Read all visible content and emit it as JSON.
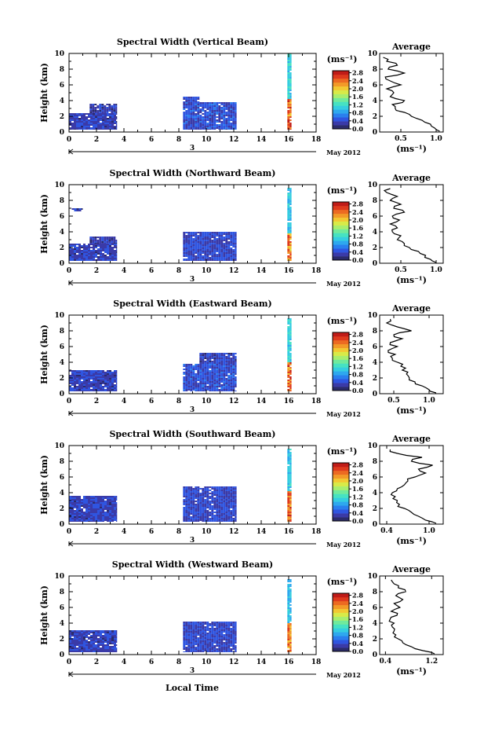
{
  "figure": {
    "xlabel": "Local Time",
    "date_label": "May 2012",
    "date_marker": "3",
    "avg_title": "Average",
    "cb_unit": "(ms⁻¹)",
    "avg_xlabel": "(ms⁻¹)",
    "ylabel": "Height (km)"
  },
  "colors": {
    "colormap": [
      "#2b2b6b",
      "#3a3aa8",
      "#2f55e0",
      "#2a7fee",
      "#2ea8ee",
      "#35cde0",
      "#46e2c2",
      "#70ea9c",
      "#a8ee6e",
      "#d8ea48",
      "#f2c832",
      "#f29a28",
      "#ec6a22",
      "#de3a1e",
      "#c01c18"
    ],
    "background": "#ffffff"
  },
  "chart_data": [
    {
      "type": "heatmap",
      "title": "Spectral Width (Vertical Beam)",
      "xlim": [
        0,
        18
      ],
      "ylim": [
        0,
        10
      ],
      "xticks": [
        "0",
        "2",
        "4",
        "6",
        "8",
        "10",
        "12",
        "14",
        "16",
        "18"
      ],
      "yticks": [
        "0",
        "2",
        "4",
        "6",
        "8",
        "10"
      ],
      "colorbar": {
        "ticks": [
          "0.0",
          "0.4",
          "0.8",
          "1.2",
          "1.6",
          "2.0",
          "2.4",
          "2.8"
        ],
        "range": [
          0,
          2.9
        ]
      },
      "blocks": [
        {
          "t": [
            0,
            3.5
          ],
          "h": [
            0.3,
            2.4
          ],
          "v": 0.35
        },
        {
          "t": [
            1.5,
            3.5
          ],
          "h": [
            2.4,
            3.6
          ],
          "v": 0.3
        },
        {
          "t": [
            8.3,
            12.2
          ],
          "h": [
            0.3,
            3.8
          ],
          "v": 0.45
        },
        {
          "t": [
            8.3,
            9.5
          ],
          "h": [
            3.8,
            4.5
          ],
          "v": 0.4
        },
        {
          "t": [
            15.9,
            16.2
          ],
          "h": [
            0.3,
            4.2
          ],
          "v": 2.4
        },
        {
          "t": [
            15.9,
            16.2
          ],
          "h": [
            4.2,
            10.0
          ],
          "v": 1.1
        }
      ],
      "average": {
        "xlim": [
          0.2,
          1.1
        ],
        "xticks": [
          "0.5",
          "1.0"
        ],
        "xtick_values": [
          0.5,
          1.0
        ],
        "x": [
          1.05,
          0.98,
          0.92,
          0.8,
          0.65,
          0.55,
          0.42,
          0.38,
          0.55,
          0.35,
          0.4,
          0.3,
          0.5,
          0.35,
          0.28,
          0.55,
          0.32,
          0.45,
          0.3,
          0.25
        ],
        "y": [
          0.1,
          0.5,
          1.0,
          1.5,
          2.0,
          2.5,
          3.0,
          3.5,
          4.0,
          4.5,
          5.0,
          5.5,
          6.0,
          6.5,
          7.0,
          7.5,
          8.0,
          8.5,
          9.0,
          9.5
        ]
      }
    },
    {
      "type": "heatmap",
      "title": "Spectral Width (Northward Beam)",
      "xlim": [
        0,
        18
      ],
      "ylim": [
        0,
        10
      ],
      "xticks": [
        "0",
        "2",
        "4",
        "6",
        "8",
        "10",
        "12",
        "14",
        "16",
        "18"
      ],
      "yticks": [
        "0",
        "2",
        "4",
        "6",
        "8",
        "10"
      ],
      "colorbar": {
        "ticks": [
          "0.0",
          "0.4",
          "0.8",
          "1.2",
          "1.6",
          "2.0",
          "2.4",
          "2.8"
        ],
        "range": [
          0,
          2.9
        ]
      },
      "blocks": [
        {
          "t": [
            0,
            3.5
          ],
          "h": [
            0.3,
            2.5
          ],
          "v": 0.35
        },
        {
          "t": [
            1.5,
            3.5
          ],
          "h": [
            2.5,
            3.4
          ],
          "v": 0.3
        },
        {
          "t": [
            8.3,
            12.2
          ],
          "h": [
            0.3,
            4.0
          ],
          "v": 0.4
        },
        {
          "t": [
            0.2,
            1.0
          ],
          "h": [
            6.6,
            7.0
          ],
          "v": 0.3
        },
        {
          "t": [
            15.9,
            16.2
          ],
          "h": [
            0.3,
            3.8
          ],
          "v": 2.3
        },
        {
          "t": [
            15.9,
            16.2
          ],
          "h": [
            3.8,
            9.6
          ],
          "v": 1.0
        }
      ],
      "average": {
        "xlim": [
          0.2,
          1.1
        ],
        "xticks": [
          "0.5",
          "1.0"
        ],
        "xtick_values": [
          0.5,
          1.0
        ],
        "x": [
          1.0,
          0.92,
          0.85,
          0.75,
          0.62,
          0.55,
          0.45,
          0.5,
          0.38,
          0.45,
          0.35,
          0.48,
          0.38,
          0.55,
          0.4,
          0.5,
          0.35,
          0.45,
          0.3,
          0.35
        ],
        "y": [
          0.1,
          0.5,
          1.0,
          1.5,
          2.0,
          2.5,
          3.0,
          3.5,
          4.0,
          4.5,
          5.0,
          5.5,
          6.0,
          6.5,
          7.0,
          7.5,
          8.0,
          8.5,
          9.0,
          9.5
        ]
      }
    },
    {
      "type": "heatmap",
      "title": "Spectral Width (Eastward Beam)",
      "xlim": [
        0,
        18
      ],
      "ylim": [
        0,
        10
      ],
      "xticks": [
        "0",
        "2",
        "4",
        "6",
        "8",
        "10",
        "12",
        "14",
        "16",
        "18"
      ],
      "yticks": [
        "0",
        "2",
        "4",
        "6",
        "8",
        "10"
      ],
      "colorbar": {
        "ticks": [
          "0.0",
          "0.4",
          "0.8",
          "1.2",
          "1.6",
          "2.0",
          "2.4",
          "2.8"
        ],
        "range": [
          0,
          2.9
        ]
      },
      "blocks": [
        {
          "t": [
            0,
            3.5
          ],
          "h": [
            0.3,
            3.0
          ],
          "v": 0.35
        },
        {
          "t": [
            8.3,
            12.2
          ],
          "h": [
            0.3,
            3.8
          ],
          "v": 0.45
        },
        {
          "t": [
            9.5,
            12.2
          ],
          "h": [
            3.8,
            5.2
          ],
          "v": 0.35
        },
        {
          "t": [
            15.9,
            16.2
          ],
          "h": [
            0.3,
            4.0
          ],
          "v": 2.4
        },
        {
          "t": [
            15.9,
            16.2
          ],
          "h": [
            4.0,
            9.6
          ],
          "v": 1.1
        }
      ],
      "average": {
        "xlim": [
          0.3,
          1.2
        ],
        "xticks": [
          "0.5",
          "1.0"
        ],
        "xtick_values": [
          0.5,
          1.0
        ],
        "x": [
          1.1,
          1.0,
          0.9,
          0.8,
          0.72,
          0.68,
          0.62,
          0.6,
          0.55,
          0.48,
          0.52,
          0.42,
          0.55,
          0.45,
          0.62,
          0.5,
          0.75,
          0.55,
          0.4,
          0.45
        ],
        "y": [
          0.1,
          0.5,
          1.0,
          1.5,
          2.0,
          2.5,
          3.0,
          3.5,
          4.0,
          4.5,
          5.0,
          5.5,
          6.0,
          6.5,
          7.0,
          7.5,
          8.0,
          8.5,
          9.0,
          9.5
        ]
      }
    },
    {
      "type": "heatmap",
      "title": "Spectral Width (Southward Beam)",
      "xlim": [
        0,
        18
      ],
      "ylim": [
        0,
        10
      ],
      "xticks": [
        "0",
        "2",
        "4",
        "6",
        "8",
        "10",
        "12",
        "14",
        "16",
        "18"
      ],
      "yticks": [
        "0",
        "2",
        "4",
        "6",
        "8",
        "10"
      ],
      "colorbar": {
        "ticks": [
          "0.0",
          "0.4",
          "0.8",
          "1.2",
          "1.6",
          "2.0",
          "2.4",
          "2.8"
        ],
        "range": [
          0,
          2.9
        ]
      },
      "blocks": [
        {
          "t": [
            0,
            3.5
          ],
          "h": [
            0.3,
            3.6
          ],
          "v": 0.35
        },
        {
          "t": [
            8.3,
            12.2
          ],
          "h": [
            0.3,
            4.8
          ],
          "v": 0.4
        },
        {
          "t": [
            15.9,
            16.2
          ],
          "h": [
            0.3,
            4.2
          ],
          "v": 2.4
        },
        {
          "t": [
            15.9,
            16.2
          ],
          "h": [
            4.2,
            9.6
          ],
          "v": 1.0
        }
      ],
      "average": {
        "xlim": [
          0.3,
          1.2
        ],
        "xticks": [
          "0.4",
          "1.0"
        ],
        "xtick_values": [
          0.4,
          1.0
        ],
        "x": [
          1.1,
          0.95,
          0.85,
          0.75,
          0.65,
          0.58,
          0.55,
          0.52,
          0.48,
          0.55,
          0.65,
          0.7,
          0.8,
          0.95,
          0.85,
          1.05,
          0.75,
          0.9,
          0.55,
          0.45
        ],
        "y": [
          0.1,
          0.5,
          1.0,
          1.5,
          2.0,
          2.5,
          3.0,
          3.5,
          4.0,
          4.5,
          5.0,
          5.5,
          6.0,
          6.5,
          7.0,
          7.5,
          8.0,
          8.5,
          9.0,
          9.5
        ]
      }
    },
    {
      "type": "heatmap",
      "title": "Spectral Width (Westward Beam)",
      "xlim": [
        0,
        18
      ],
      "ylim": [
        0,
        10
      ],
      "xticks": [
        "0",
        "2",
        "4",
        "6",
        "8",
        "10",
        "12",
        "14",
        "16",
        "18"
      ],
      "yticks": [
        "0",
        "2",
        "4",
        "6",
        "8",
        "10"
      ],
      "colorbar": {
        "ticks": [
          "0.0",
          "0.4",
          "0.8",
          "1.2",
          "1.6",
          "2.0",
          "2.4",
          "2.8"
        ],
        "range": [
          0,
          2.9
        ]
      },
      "blocks": [
        {
          "t": [
            0,
            3.5
          ],
          "h": [
            0.3,
            3.1
          ],
          "v": 0.35
        },
        {
          "t": [
            8.3,
            12.2
          ],
          "h": [
            0.3,
            4.2
          ],
          "v": 0.4
        },
        {
          "t": [
            15.9,
            16.2
          ],
          "h": [
            0.3,
            4.0
          ],
          "v": 2.3
        },
        {
          "t": [
            15.9,
            16.2
          ],
          "h": [
            4.0,
            9.6
          ],
          "v": 1.0
        }
      ],
      "average": {
        "xlim": [
          0.3,
          1.4
        ],
        "xticks": [
          "0.4",
          "1.2"
        ],
        "xtick_values": [
          0.4,
          1.2
        ],
        "x": [
          1.25,
          1.05,
          0.85,
          0.7,
          0.62,
          0.58,
          0.55,
          0.52,
          0.55,
          0.48,
          0.6,
          0.5,
          0.65,
          0.55,
          0.7,
          0.58,
          0.75,
          0.62,
          0.55,
          0.5
        ],
        "y": [
          0.1,
          0.5,
          1.0,
          1.5,
          2.0,
          2.5,
          3.0,
          3.5,
          4.0,
          4.5,
          5.0,
          5.5,
          6.0,
          6.5,
          7.0,
          7.5,
          8.0,
          8.5,
          9.0,
          9.5
        ]
      }
    }
  ]
}
